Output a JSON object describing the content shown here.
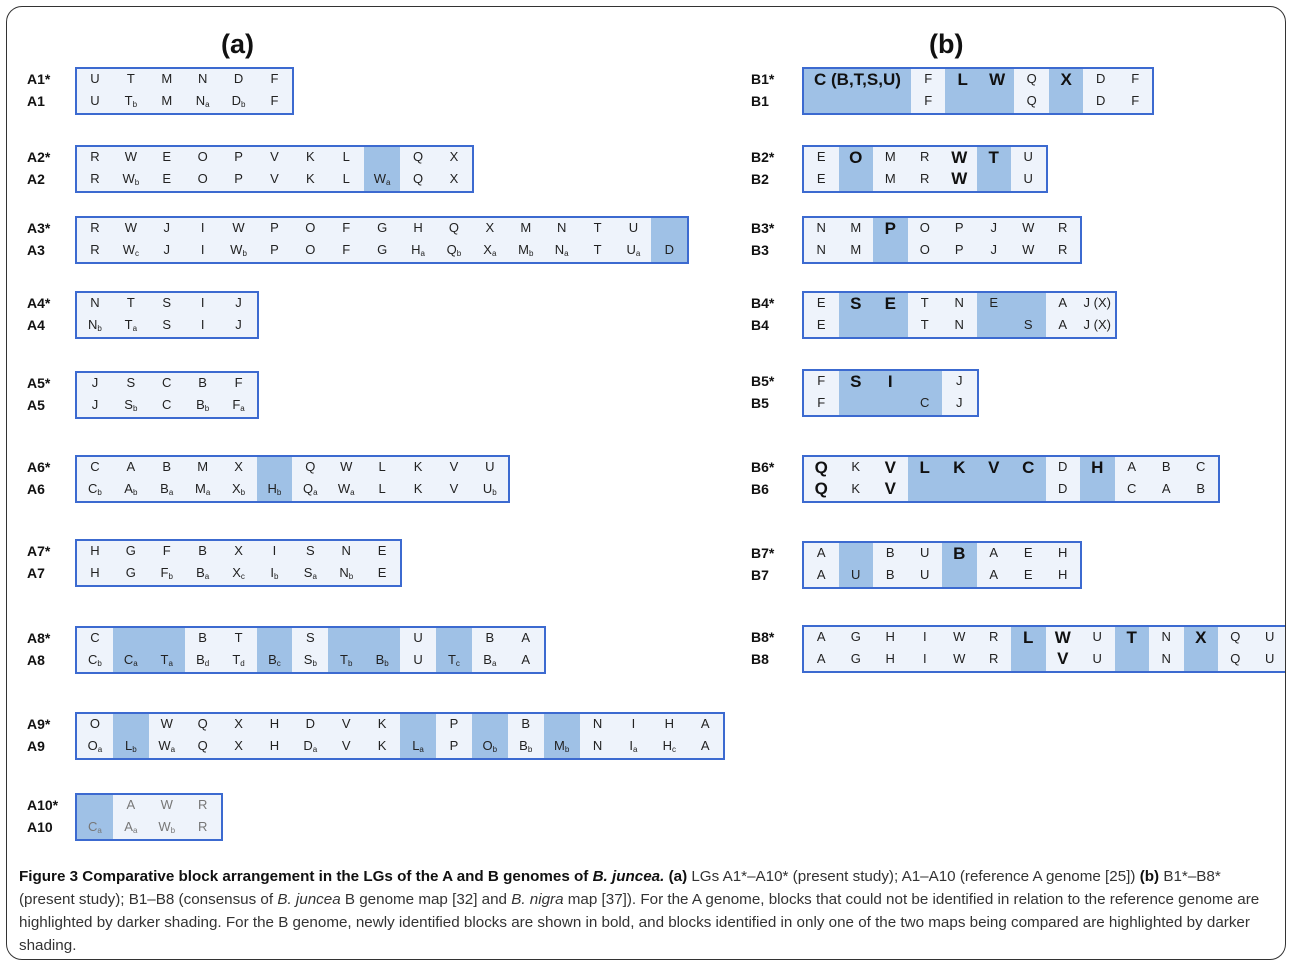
{
  "figure": {
    "panel_a_label": "(a)",
    "panel_b_label": "(b)",
    "caption": {
      "title": "Figure 3 Comparative block arrangement in the LGs of the A and B genomes of ",
      "title_species": "B. juncea.",
      "a_label": "(a)",
      "text_a": "LGs A1*–A10* (present study); A1–A10 (reference A genome [25])",
      "b_label": "(b)",
      "text_b_pre": "B1*–B8* (present study); B1–B8 (consensus of ",
      "text_b_species1": "B. juncea",
      "text_b_mid": " B genome map [32] and ",
      "text_b_species2": "B. nigra",
      "text_b_post": " map [37]). For the A genome, blocks that could not be identified in relation to the reference genome are highlighted by darker shading. For the B genome, newly identified blocks are shown in bold, and blocks identified in only one of the two maps being compared are highlighted by darker shading."
    }
  },
  "colors": {
    "box_border": "#3c6ad0",
    "box_fill": "#eef3fb",
    "dark_shading": "#9fc1e6"
  },
  "panels": [
    {
      "id": "a",
      "groups": [
        {
          "top_label": "A1*",
          "bottom_label": "A1",
          "cells": [
            {
              "t": "U",
              "b": "U"
            },
            {
              "t": "T",
              "b": "T_b"
            },
            {
              "t": "M",
              "b": "M"
            },
            {
              "t": "N",
              "b": "N_a"
            },
            {
              "t": "D",
              "b": "D_b"
            },
            {
              "t": "F",
              "b": "F"
            }
          ]
        },
        {
          "top_label": "A2*",
          "bottom_label": "A2",
          "cells": [
            {
              "t": "R",
              "b": "R"
            },
            {
              "t": "W",
              "b": "W_b"
            },
            {
              "t": "E",
              "b": "E"
            },
            {
              "t": "O",
              "b": "O"
            },
            {
              "t": "P",
              "b": "P"
            },
            {
              "t": "V",
              "b": "V"
            },
            {
              "t": "K",
              "b": "K"
            },
            {
              "t": "L",
              "b": "L"
            },
            {
              "t": "",
              "b": "W_a",
              "dark": true
            },
            {
              "t": "Q",
              "b": "Q"
            },
            {
              "t": "X",
              "b": "X"
            }
          ]
        },
        {
          "top_label": "A3*",
          "bottom_label": "A3",
          "cells": [
            {
              "t": "R",
              "b": "R"
            },
            {
              "t": "W",
              "b": "W_c"
            },
            {
              "t": "J",
              "b": "J"
            },
            {
              "t": "I",
              "b": "I"
            },
            {
              "t": "W",
              "b": "W_b"
            },
            {
              "t": "P",
              "b": "P"
            },
            {
              "t": "O",
              "b": "O"
            },
            {
              "t": "F",
              "b": "F"
            },
            {
              "t": "G",
              "b": "G"
            },
            {
              "t": "H",
              "b": "H_a"
            },
            {
              "t": "Q",
              "b": "Q_b"
            },
            {
              "t": "X",
              "b": "X_a"
            },
            {
              "t": "M",
              "b": "M_b"
            },
            {
              "t": "N",
              "b": "N_a"
            },
            {
              "t": "T",
              "b": "T"
            },
            {
              "t": "U",
              "b": "U_a"
            },
            {
              "t": "",
              "b": "D",
              "dark": true
            }
          ]
        },
        {
          "top_label": "A4*",
          "bottom_label": "A4",
          "cells": [
            {
              "t": "N",
              "b": "N_b"
            },
            {
              "t": "T",
              "b": "T_a"
            },
            {
              "t": "S",
              "b": "S"
            },
            {
              "t": "I",
              "b": "I"
            },
            {
              "t": "J",
              "b": "J"
            }
          ]
        },
        {
          "top_label": "A5*",
          "bottom_label": "A5",
          "cells": [
            {
              "t": "J",
              "b": "J"
            },
            {
              "t": "S",
              "b": "S_b"
            },
            {
              "t": "C",
              "b": "C"
            },
            {
              "t": "B",
              "b": "B_b"
            },
            {
              "t": "F",
              "b": "F_a"
            }
          ]
        },
        {
          "top_label": "A6*",
          "bottom_label": "A6",
          "cells": [
            {
              "t": "C",
              "b": "C_b"
            },
            {
              "t": "A",
              "b": "A_b"
            },
            {
              "t": "B",
              "b": "B_a"
            },
            {
              "t": "M",
              "b": "M_a"
            },
            {
              "t": "X",
              "b": "X_b"
            },
            {
              "t": "",
              "b": "H_b",
              "dark": true
            },
            {
              "t": "Q",
              "b": "Q_a"
            },
            {
              "t": "W",
              "b": "W_a"
            },
            {
              "t": "L",
              "b": "L"
            },
            {
              "t": "K",
              "b": "K"
            },
            {
              "t": "V",
              "b": "V"
            },
            {
              "t": "U",
              "b": "U_b"
            }
          ]
        },
        {
          "top_label": "A7*",
          "bottom_label": "A7",
          "cells": [
            {
              "t": "H",
              "b": "H"
            },
            {
              "t": "G",
              "b": "G"
            },
            {
              "t": "F",
              "b": "F_b"
            },
            {
              "t": "B",
              "b": "B_a"
            },
            {
              "t": "X",
              "b": "X_c"
            },
            {
              "t": "I",
              "b": "I_b"
            },
            {
              "t": "S",
              "b": "S_a"
            },
            {
              "t": "N",
              "b": "N_b"
            },
            {
              "t": "E",
              "b": "E"
            }
          ]
        },
        {
          "top_label": "A8*",
          "bottom_label": "A8",
          "cells": [
            {
              "t": "C",
              "b": "C_b"
            },
            {
              "t": "",
              "b": "C_a",
              "dark": true
            },
            {
              "t": "",
              "b": "T_a",
              "dark": true
            },
            {
              "t": "B",
              "b": "B_d"
            },
            {
              "t": "T",
              "b": "T_d"
            },
            {
              "t": "",
              "b": "B_c",
              "dark": true
            },
            {
              "t": "S",
              "b": "S_b"
            },
            {
              "t": "",
              "b": "T_b",
              "dark": true
            },
            {
              "t": "",
              "b": "B_b",
              "dark": true
            },
            {
              "t": "U",
              "b": "U"
            },
            {
              "t": "",
              "b": "T_c",
              "dark": true
            },
            {
              "t": "B",
              "b": "B_a"
            },
            {
              "t": "A",
              "b": "A"
            }
          ]
        },
        {
          "top_label": "A9*",
          "bottom_label": "A9",
          "cells": [
            {
              "t": "O",
              "b": "O_a"
            },
            {
              "t": "",
              "b": "L_b",
              "dark": true
            },
            {
              "t": "W",
              "b": "W_a"
            },
            {
              "t": "Q",
              "b": "Q"
            },
            {
              "t": "X",
              "b": "X"
            },
            {
              "t": "H",
              "b": "H"
            },
            {
              "t": "D",
              "b": "D_a"
            },
            {
              "t": "V",
              "b": "V"
            },
            {
              "t": "K",
              "b": "K"
            },
            {
              "t": "",
              "b": "L_a",
              "dark": true
            },
            {
              "t": "P",
              "b": "P"
            },
            {
              "t": "",
              "b": "O_b",
              "dark": true
            },
            {
              "t": "B",
              "b": "B_b"
            },
            {
              "t": "",
              "b": "M_b",
              "dark": true
            },
            {
              "t": "N",
              "b": "N"
            },
            {
              "t": "I",
              "b": "I_a"
            },
            {
              "t": "H",
              "b": "H_c"
            },
            {
              "t": "A",
              "b": "A"
            }
          ]
        },
        {
          "top_label": "A10*",
          "bottom_label": "A10",
          "gray": true,
          "cells": [
            {
              "t": "",
              "b": "C_a",
              "dark": true
            },
            {
              "t": "A",
              "b": "A_a"
            },
            {
              "t": "W",
              "b": "W_b"
            },
            {
              "t": "R",
              "b": "R"
            }
          ]
        }
      ]
    },
    {
      "id": "b",
      "groups": [
        {
          "top_label": "B1*",
          "bottom_label": "B1",
          "cells": [
            {
              "t": "C (B,T,S,U)",
              "b": "",
              "dark": true,
              "bold": true,
              "wide": true
            },
            {
              "t": "F",
              "b": "F"
            },
            {
              "t": "L",
              "b": "",
              "dark": true,
              "bold": true
            },
            {
              "t": "W",
              "b": "",
              "dark": true,
              "bold": true
            },
            {
              "t": "Q",
              "b": "Q"
            },
            {
              "t": "X",
              "b": "",
              "dark": true,
              "bold": true
            },
            {
              "t": "D",
              "b": "D"
            },
            {
              "t": "F",
              "b": "F"
            }
          ]
        },
        {
          "top_label": "B2*",
          "bottom_label": "B2",
          "cells": [
            {
              "t": "E",
              "b": "E"
            },
            {
              "t": "O",
              "b": "",
              "dark": true,
              "bold": true
            },
            {
              "t": "M",
              "b": "M"
            },
            {
              "t": "R",
              "b": "R"
            },
            {
              "t": "W",
              "b": "W",
              "bold": true
            },
            {
              "t": "T",
              "b": "",
              "dark": true,
              "bold": true
            },
            {
              "t": "U",
              "b": "U"
            }
          ]
        },
        {
          "top_label": "B3*",
          "bottom_label": "B3",
          "cells": [
            {
              "t": "N",
              "b": "N"
            },
            {
              "t": "M",
              "b": "M"
            },
            {
              "t": "P",
              "b": "",
              "dark": true,
              "bold": true
            },
            {
              "t": "O",
              "b": "O"
            },
            {
              "t": "P",
              "b": "P"
            },
            {
              "t": "J",
              "b": "J"
            },
            {
              "t": "W",
              "b": "W"
            },
            {
              "t": "R",
              "b": "R"
            }
          ]
        },
        {
          "top_label": "B4*",
          "bottom_label": "B4",
          "cells": [
            {
              "t": "E",
              "b": "E"
            },
            {
              "t": "S",
              "b": "",
              "dark": true,
              "bold": true
            },
            {
              "t": "E",
              "b": "",
              "dark": true,
              "bold": true
            },
            {
              "t": "T",
              "b": "T"
            },
            {
              "t": "N",
              "b": "N"
            },
            {
              "t": "E",
              "b": "",
              "dark": true
            },
            {
              "t": "",
              "b": "S",
              "dark": true
            },
            {
              "t": "A",
              "b": "A"
            },
            {
              "t": "J (X)",
              "b": "J (X)"
            }
          ]
        },
        {
          "top_label": "B5*",
          "bottom_label": "B5",
          "cells": [
            {
              "t": "F",
              "b": "F"
            },
            {
              "t": "S",
              "b": "",
              "dark": true,
              "bold": true
            },
            {
              "t": "I",
              "b": "",
              "dark": true,
              "bold": true
            },
            {
              "t": "",
              "b": "C",
              "dark": true
            },
            {
              "t": "J",
              "b": "J"
            }
          ]
        },
        {
          "top_label": "B6*",
          "bottom_label": "B6",
          "cells": [
            {
              "t": "Q",
              "b": "Q",
              "bold": true
            },
            {
              "t": "K",
              "b": "K"
            },
            {
              "t": "V",
              "b": "V",
              "bold": true
            },
            {
              "t": "L",
              "b": "",
              "dark": true,
              "bold": true
            },
            {
              "t": "K",
              "b": "",
              "dark": true,
              "bold": true
            },
            {
              "t": "V",
              "b": "",
              "dark": true,
              "bold": true
            },
            {
              "t": "C",
              "b": "",
              "dark": true,
              "bold": true
            },
            {
              "t": "D",
              "b": "D"
            },
            {
              "t": "H",
              "b": "",
              "dark": true,
              "bold": true
            },
            {
              "t": "A",
              "b": "C"
            },
            {
              "t": "B",
              "b": "A"
            },
            {
              "t": "C",
              "b": "B"
            }
          ]
        },
        {
          "top_label": "B7*",
          "bottom_label": "B7",
          "cells": [
            {
              "t": "A",
              "b": "A"
            },
            {
              "t": "",
              "b": "U",
              "dark": true
            },
            {
              "t": "B",
              "b": "B"
            },
            {
              "t": "U",
              "b": "U"
            },
            {
              "t": "B",
              "b": "",
              "dark": true,
              "bold": true
            },
            {
              "t": "A",
              "b": "A"
            },
            {
              "t": "E",
              "b": "E"
            },
            {
              "t": "H",
              "b": "H"
            }
          ]
        },
        {
          "top_label": "B8*",
          "bottom_label": "B8",
          "cells": [
            {
              "t": "A",
              "b": "A"
            },
            {
              "t": "G",
              "b": "G"
            },
            {
              "t": "H",
              "b": "H"
            },
            {
              "t": "I",
              "b": "I"
            },
            {
              "t": "W",
              "b": "W"
            },
            {
              "t": "R",
              "b": "R"
            },
            {
              "t": "L",
              "b": "",
              "dark": true,
              "bold": true
            },
            {
              "t": "W",
              "b": "V",
              "bold": true
            },
            {
              "t": "U",
              "b": "U"
            },
            {
              "t": "T",
              "b": "",
              "dark": true,
              "bold": true
            },
            {
              "t": "N",
              "b": "N"
            },
            {
              "t": "X",
              "b": "",
              "dark": true,
              "bold": true
            },
            {
              "t": "Q",
              "b": "Q"
            },
            {
              "t": "U",
              "b": "U"
            }
          ]
        }
      ]
    }
  ]
}
